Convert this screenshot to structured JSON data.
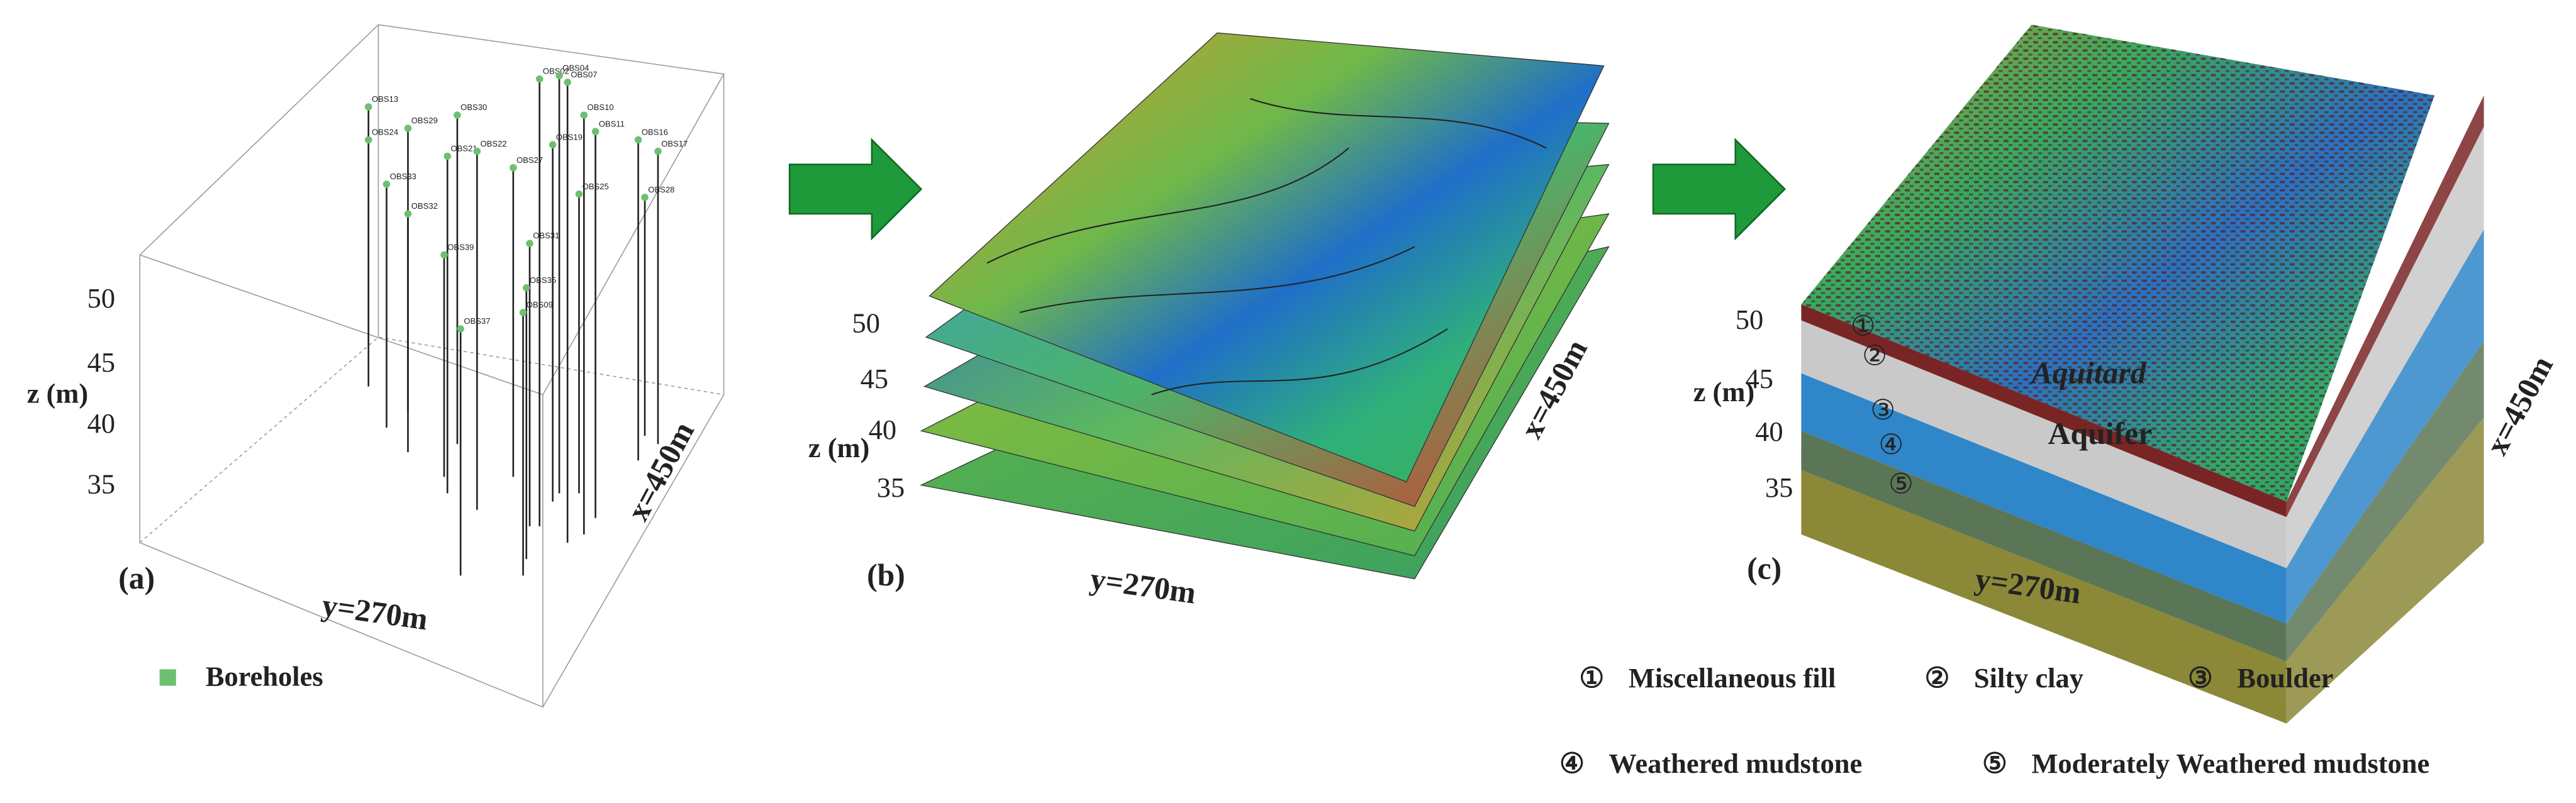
{
  "panels": [
    {
      "label": "(a)",
      "z_axis": {
        "title": "z (m)",
        "ticks": [
          "50",
          "45",
          "40",
          "35"
        ]
      },
      "y_axis": "y=270m",
      "x_axis": "x=450m"
    },
    {
      "label": "(b)",
      "z_axis": {
        "title": "z (m)",
        "ticks": [
          "50",
          "45",
          "40",
          "35"
        ]
      },
      "y_axis": "y=270m",
      "x_axis": "x=450m"
    },
    {
      "label": "(c)",
      "z_axis": {
        "title": "z (m)",
        "ticks": [
          "50",
          "45",
          "40",
          "35"
        ]
      },
      "y_axis": "y=270m",
      "x_axis": "x=450m"
    }
  ],
  "panel_a": {
    "legend": "Boreholes",
    "boreholes": [
      "OBS13",
      "OBS24",
      "OBS29",
      "OBS30",
      "OBS21",
      "OBS22",
      "OBS33",
      "OBS32",
      "OBS39",
      "OBS37",
      "OBS02",
      "OBS04",
      "OBS07",
      "OBS10",
      "OBS11",
      "OBS19",
      "OBS27",
      "OBS16",
      "OBS17",
      "OBS28",
      "OBS25",
      "OBS31",
      "OBS35",
      "OBS09"
    ]
  },
  "panel_c": {
    "layers": [
      "Aquitard",
      "Aquifer"
    ]
  },
  "legend": [
    {
      "number": "①",
      "name": "Miscellaneous fill"
    },
    {
      "number": "②",
      "name": "Silty clay"
    },
    {
      "number": "③",
      "name": "Boulder"
    },
    {
      "number": "④",
      "name": "Weathered mudstone"
    },
    {
      "number": "⑤",
      "name": "Moderately Weathered mudstone"
    }
  ]
}
